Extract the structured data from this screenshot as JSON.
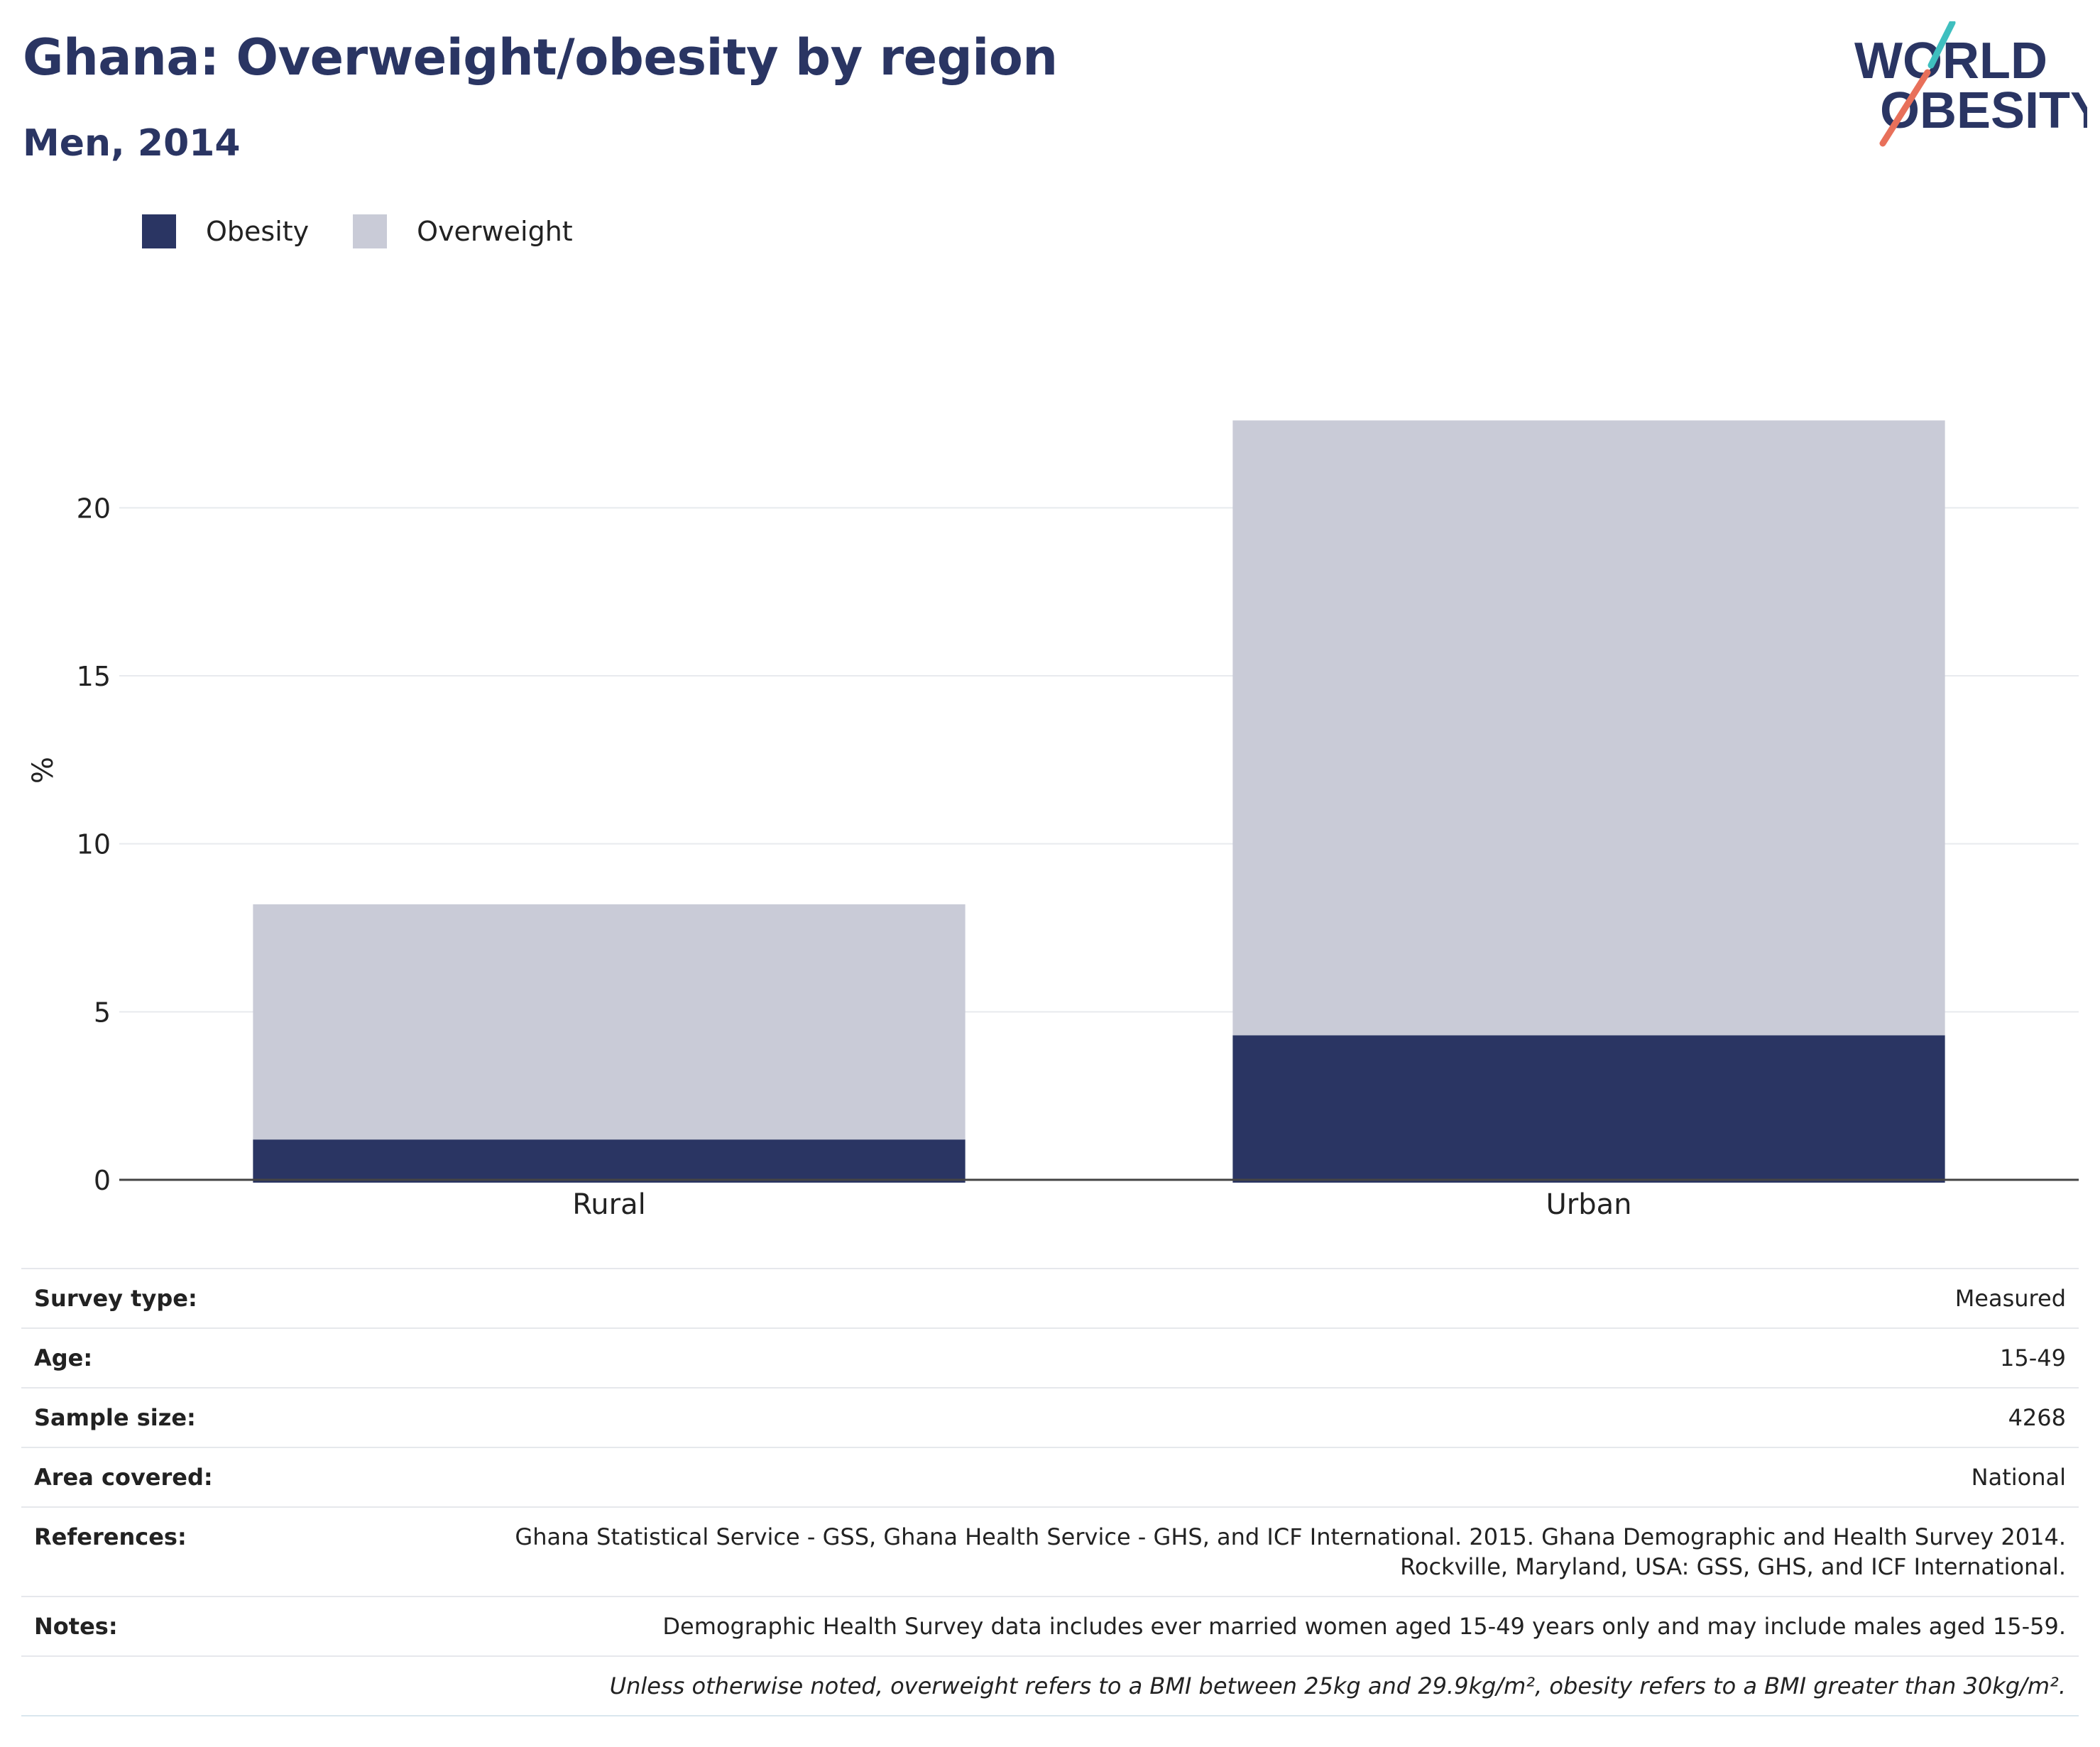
{
  "header": {
    "title": "Ghana: Overweight/obesity by region",
    "subtitle": "Men, 2014"
  },
  "logo": {
    "line1": "WORLD",
    "line2": "OBESITY",
    "colors": {
      "text": "#2a3563",
      "slash_top": "#3fbfbf",
      "slash_bottom": "#e8705a"
    }
  },
  "legend": {
    "items": [
      {
        "label": "Obesity",
        "color": "#2a3563"
      },
      {
        "label": "Overweight",
        "color": "#c9cbd7"
      }
    ]
  },
  "chart_data": {
    "type": "bar",
    "stacked": true,
    "categories": [
      "Rural",
      "Urban"
    ],
    "series": [
      {
        "name": "Obesity",
        "color": "#2a3563",
        "values": [
          1.2,
          4.3
        ]
      },
      {
        "name": "Overweight",
        "color": "#c9cbd7",
        "values": [
          7.0,
          18.3
        ]
      }
    ],
    "ylabel": "%",
    "ylim": [
      0,
      24
    ],
    "yticks": [
      0,
      5,
      10,
      15,
      20
    ],
    "grid": true,
    "legend_position": "top-left"
  },
  "info": {
    "survey_type": {
      "label": "Survey type:",
      "value": "Measured"
    },
    "age": {
      "label": "Age:",
      "value": "15-49"
    },
    "sample_size": {
      "label": "Sample size:",
      "value": "4268"
    },
    "area_covered": {
      "label": "Area covered:",
      "value": "National"
    },
    "references": {
      "label": "References:",
      "line1": "Ghana Statistical Service - GSS, Ghana Health Service - GHS, and ICF International. 2015. Ghana Demographic and Health Survey 2014.",
      "line2": "Rockville, Maryland, USA: GSS, GHS, and ICF International."
    },
    "notes": {
      "label": "Notes:",
      "value": "Demographic Health Survey data includes ever married women aged 15-49 years only and may include males aged 15-59."
    },
    "definition_note": "Unless otherwise noted, overweight refers to a BMI between 25kg and 29.9kg/m², obesity refers to a BMI greater than 30kg/m²."
  }
}
